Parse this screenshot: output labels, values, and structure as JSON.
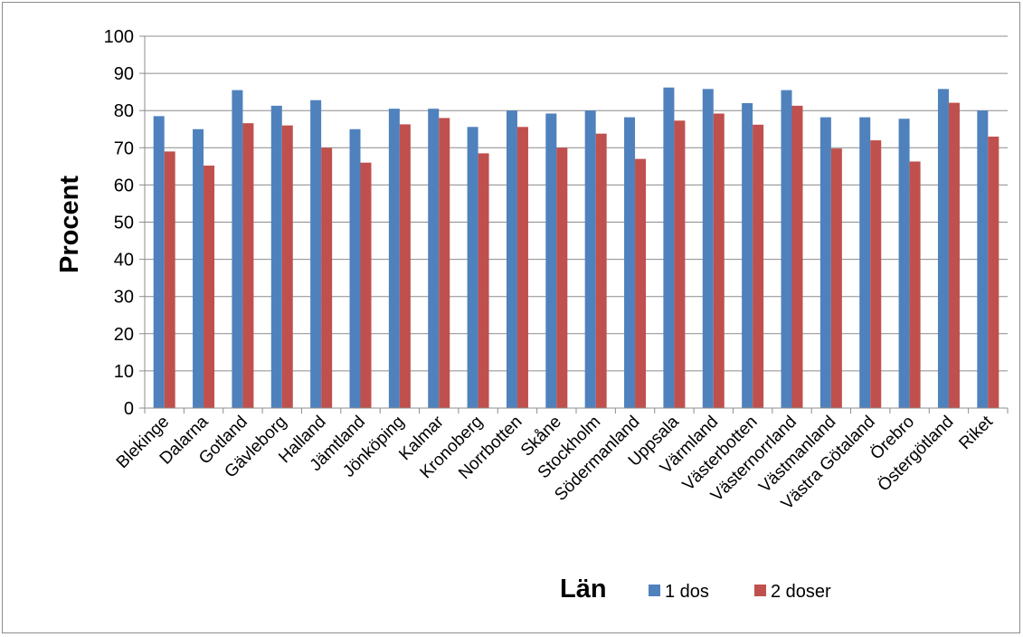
{
  "chart_data": {
    "type": "bar",
    "title": "",
    "xlabel": "Län",
    "ylabel": "Procent",
    "ylim": [
      0,
      100
    ],
    "yticks": [
      0,
      10,
      20,
      30,
      40,
      50,
      60,
      70,
      80,
      90,
      100
    ],
    "grid": true,
    "legend_position": "bottom",
    "categories": [
      "Blekinge",
      "Dalarna",
      "Gotland",
      "Gävleborg",
      "Halland",
      "Jämtland",
      "Jönköping",
      "Kalmar",
      "Kronoberg",
      "Norrbotten",
      "Skåne",
      "Stockholm",
      "Södermanland",
      "Uppsala",
      "Värmland",
      "Västerbotten",
      "Västernorrland",
      "Västmanland",
      "Västra Götaland",
      "Örebro",
      "Östergötland",
      "Riket"
    ],
    "series": [
      {
        "name": "1 dos",
        "color": "#4f81bd",
        "values": [
          78.5,
          75,
          85.5,
          81.3,
          82.8,
          75,
          80.5,
          80.5,
          75.6,
          80,
          79.2,
          80,
          78.2,
          86.2,
          85.8,
          82,
          85.5,
          78.2,
          78.2,
          77.8,
          85.8,
          80
        ]
      },
      {
        "name": "2 doser",
        "color": "#c0504d",
        "values": [
          69,
          65.2,
          76.6,
          76,
          70,
          66,
          76.3,
          78,
          68.5,
          75.6,
          70,
          73.8,
          67,
          77.3,
          79.2,
          76.2,
          81.3,
          69.8,
          72,
          66.3,
          82.1,
          73
        ]
      }
    ]
  }
}
